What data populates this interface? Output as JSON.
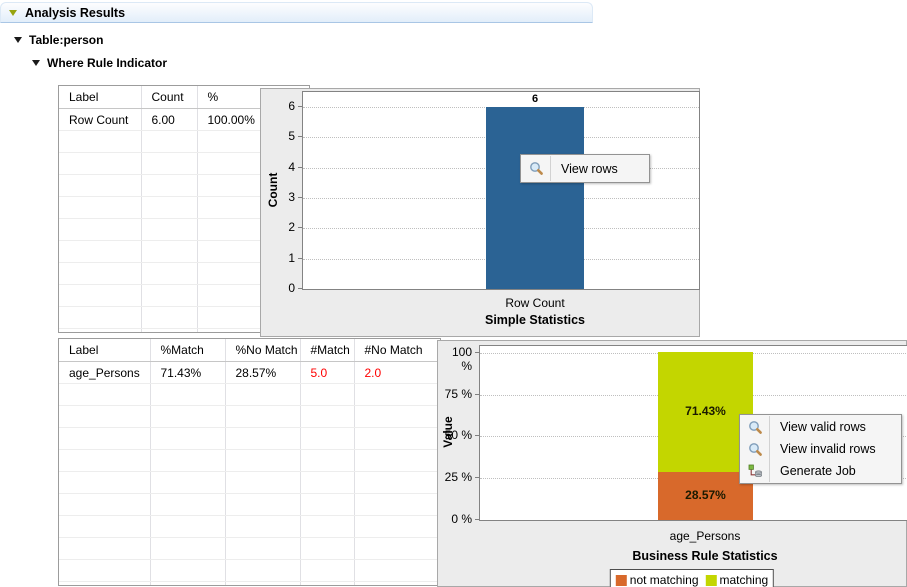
{
  "header": {
    "title": "Analysis Results"
  },
  "tree": {
    "table": "Table:person",
    "indicator": "Where Rule Indicator"
  },
  "section_simple": {
    "table": {
      "columns": [
        "Label",
        "Count",
        "%"
      ],
      "rows": [
        [
          "Row Count",
          "6.00",
          "100.00%"
        ]
      ]
    },
    "chart_data": {
      "type": "bar",
      "title": "Simple Statistics",
      "ylabel": "Count",
      "categories": [
        "Row Count"
      ],
      "values": [
        6
      ],
      "bar_label": "6",
      "bar_color": "#2b6394",
      "ylim": [
        0,
        6.5
      ],
      "yticks": [
        0,
        1,
        2,
        3,
        4,
        5,
        6
      ],
      "ytick_suffix": "",
      "grid": "horizontal-dotted"
    },
    "menu": {
      "items": [
        {
          "icon": "magnifier-icon",
          "label": "View rows"
        }
      ]
    }
  },
  "section_business": {
    "table": {
      "columns": [
        "Label",
        "%Match",
        "%No Match",
        "#Match",
        "#No Match"
      ],
      "rows": [
        [
          "age_Persons",
          "71.43%",
          "28.57%",
          "5.0",
          "2.0"
        ]
      ],
      "red_columns": [
        3,
        4
      ]
    },
    "chart_data": {
      "type": "stacked-bar",
      "title": "Business Rule Statistics",
      "ylabel": "Value",
      "categories": [
        "age_Persons"
      ],
      "series": [
        {
          "name": "not matching",
          "values": [
            28.57
          ],
          "label": "28.57%",
          "color": "#d8692b"
        },
        {
          "name": "matching",
          "values": [
            71.43
          ],
          "label": "71.43%",
          "color": "#c3d600"
        }
      ],
      "ylim": [
        0,
        104
      ],
      "yticks": [
        0,
        25,
        50,
        75,
        100
      ],
      "ytick_suffix": " %",
      "legend_position": "bottom",
      "grid": "horizontal-dotted"
    },
    "menu": {
      "items": [
        {
          "icon": "magnifier-icon",
          "label": "View valid rows"
        },
        {
          "icon": "magnifier-icon",
          "label": "View invalid rows"
        },
        {
          "icon": "generate-job-icon",
          "label": "Generate Job"
        }
      ]
    }
  },
  "colors": {
    "bar_blue": "#2b6394",
    "matching_green": "#c3d600",
    "not_matching_orange": "#d8692b",
    "red_text": "#ff0000",
    "header_accent": "#a9c6e5"
  }
}
